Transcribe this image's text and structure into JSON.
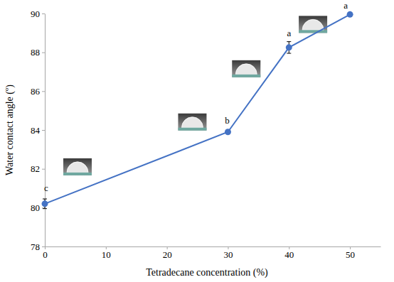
{
  "chart_data": {
    "type": "line",
    "x_label": "Tetradecane concentration (%)",
    "y_label": "Water contact angle (º)",
    "x": [
      0,
      30,
      40,
      50
    ],
    "values": [
      80.2,
      83.9,
      88.25,
      89.95
    ],
    "errors": [
      0.25,
      0.05,
      0.3,
      0.05
    ],
    "annotations": [
      "c",
      "b",
      "a",
      "a"
    ],
    "color": "#4472c4",
    "marker": "circle",
    "xlim": [
      0,
      55
    ],
    "xticks": [
      0,
      10,
      20,
      30,
      40,
      50
    ],
    "ylim": [
      78,
      90
    ],
    "yticks": [
      78,
      80,
      82,
      84,
      86,
      88,
      90
    ],
    "grid": false
  }
}
